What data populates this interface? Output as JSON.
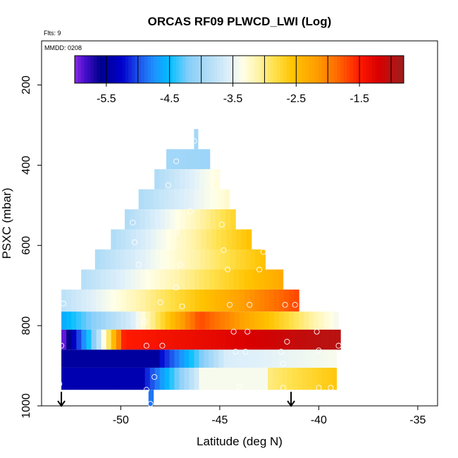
{
  "chart_data": {
    "type": "heatmap",
    "title": "ORCAS RF09 PLWCD_LWI (Log)",
    "flights_note": "Flts: 9",
    "date_note": "MMDD: 0208",
    "xlabel": "Latitude (deg N)",
    "ylabel": "PSXC (mbar)",
    "xlim": [
      -54,
      -34
    ],
    "ylim": [
      1000,
      90
    ],
    "x_ticks": [
      -50,
      -45,
      -40,
      -35
    ],
    "x_tick_labels": [
      "-50",
      "-45",
      "-40",
      "-35"
    ],
    "y_ticks": [
      200,
      400,
      600,
      800,
      1000
    ],
    "y_tick_labels": [
      "200",
      "400",
      "600",
      "800",
      "1000"
    ],
    "colorbar": {
      "range": [
        -6.0,
        -0.8
      ],
      "ticks": [
        -5.5,
        -4.5,
        -3.5,
        -2.5,
        -1.5
      ],
      "tick_labels": [
        "-5.5",
        "-4.5",
        "-3.5",
        "-2.5",
        "-1.5"
      ],
      "stops": [
        {
          "v": -6.0,
          "c": "#8a2be2"
        },
        {
          "v": -5.85,
          "c": "#4b0fd0"
        },
        {
          "v": -5.6,
          "c": "#00008b"
        },
        {
          "v": -5.25,
          "c": "#0000cd"
        },
        {
          "v": -5.0,
          "c": "#1e4fe8"
        },
        {
          "v": -4.75,
          "c": "#1e90ff"
        },
        {
          "v": -4.5,
          "c": "#00bfff"
        },
        {
          "v": -4.2,
          "c": "#87cefa"
        },
        {
          "v": -3.9,
          "c": "#b0dcf7"
        },
        {
          "v": -3.55,
          "c": "#dff0fa"
        },
        {
          "v": -3.35,
          "c": "#ffffe8"
        },
        {
          "v": -3.1,
          "c": "#fff3a8"
        },
        {
          "v": -2.85,
          "c": "#ffe14d"
        },
        {
          "v": -2.55,
          "c": "#ffc300"
        },
        {
          "v": -2.2,
          "c": "#ffa000"
        },
        {
          "v": -1.85,
          "c": "#ff6a00"
        },
        {
          "v": -1.5,
          "c": "#ff1a00"
        },
        {
          "v": -1.2,
          "c": "#d80000"
        },
        {
          "v": -0.95,
          "c": "#b21515"
        },
        {
          "v": -0.8,
          "c": "#9b1c1c"
        }
      ]
    },
    "layers": [
      {
        "p_top": 310,
        "p_bot": 360,
        "lat_start": -46.3,
        "lat_end": -46.1,
        "v_start": -4.0,
        "v_end": -4.0
      },
      {
        "p_top": 360,
        "p_bot": 410,
        "lat_start": -47.7,
        "lat_end": -45.5,
        "v_start": -4.0,
        "v_end": -4.05
      },
      {
        "p_top": 410,
        "p_bot": 460,
        "lat_start": -48.3,
        "lat_end": -45.0,
        "v_start": -3.9,
        "v_end": -3.3
      },
      {
        "p_top": 460,
        "p_bot": 510,
        "lat_start": -49.1,
        "lat_end": -44.5,
        "v_start": -3.9,
        "v_end": -3.25
      },
      {
        "p_top": 510,
        "p_bot": 560,
        "lat_start": -49.8,
        "lat_end": -44.2,
        "v_start": -3.9,
        "v_end": -2.75
      },
      {
        "p_top": 560,
        "p_bot": 610,
        "lat_start": -50.5,
        "lat_end": -43.4,
        "v_start": -3.9,
        "v_end": -2.55
      },
      {
        "p_top": 610,
        "p_bot": 660,
        "lat_start": -51.3,
        "lat_end": -42.7,
        "v_start": -3.9,
        "v_end": -2.55
      },
      {
        "p_top": 660,
        "p_bot": 710,
        "lat_start": -52.0,
        "lat_end": -41.8,
        "v_start": -3.85,
        "v_end": -2.3
      },
      {
        "p_top": 710,
        "p_bot": 765,
        "lat_start": -53.0,
        "lat_end": -41.0,
        "v_start": -3.8,
        "v_end": -1.7
      },
      {
        "p_top": 765,
        "p_bot": 810,
        "lat_start": -53.0,
        "lat_end": -39.0,
        "v_start": -4.6,
        "v_end": -3.4,
        "profile": "warm_mid"
      },
      {
        "p_top": 810,
        "p_bot": 860,
        "lat_start": -53.0,
        "lat_end": -38.9,
        "v_start": -5.9,
        "v_end": -1.0,
        "profile": "hot"
      },
      {
        "p_top": 860,
        "p_bot": 905,
        "lat_start": -53.0,
        "lat_end": -39.1,
        "v_start": -5.5,
        "v_end": -3.4,
        "profile": "cold_band"
      },
      {
        "p_top": 905,
        "p_bot": 960,
        "lat_start": -53.0,
        "lat_end": -39.1,
        "v_start": -5.4,
        "v_end": -2.6,
        "profile": "bottom_band"
      },
      {
        "p_top": 960,
        "p_bot": 1000,
        "lat_start": -48.6,
        "lat_end": -48.35,
        "v_start": -4.85,
        "v_end": -4.85
      }
    ],
    "markers_lat": [
      -53.0,
      -41.4
    ],
    "circles": [
      {
        "lat": -46.3,
        "p": 340
      },
      {
        "lat": -47.2,
        "p": 390
      },
      {
        "lat": -45.2,
        "p": 425
      },
      {
        "lat": -47.6,
        "p": 450
      },
      {
        "lat": -46.5,
        "p": 515
      },
      {
        "lat": -44.9,
        "p": 548
      },
      {
        "lat": -49.4,
        "p": 543
      },
      {
        "lat": -47.2,
        "p": 567
      },
      {
        "lat": -49.3,
        "p": 592
      },
      {
        "lat": -44.8,
        "p": 612
      },
      {
        "lat": -42.8,
        "p": 616
      },
      {
        "lat": -49.1,
        "p": 648
      },
      {
        "lat": -47.0,
        "p": 648
      },
      {
        "lat": -44.6,
        "p": 660
      },
      {
        "lat": -43.0,
        "p": 660
      },
      {
        "lat": -47.2,
        "p": 705
      },
      {
        "lat": -52.9,
        "p": 745
      },
      {
        "lat": -48.0,
        "p": 742
      },
      {
        "lat": -46.9,
        "p": 752
      },
      {
        "lat": -44.5,
        "p": 748
      },
      {
        "lat": -43.5,
        "p": 748
      },
      {
        "lat": -41.7,
        "p": 748
      },
      {
        "lat": -41.2,
        "p": 748
      },
      {
        "lat": -48.8,
        "p": 790
      },
      {
        "lat": -44.3,
        "p": 815
      },
      {
        "lat": -43.6,
        "p": 815
      },
      {
        "lat": -40.1,
        "p": 815
      },
      {
        "lat": -41.6,
        "p": 840
      },
      {
        "lat": -53.0,
        "p": 850
      },
      {
        "lat": -48.7,
        "p": 850
      },
      {
        "lat": -47.9,
        "p": 850
      },
      {
        "lat": -44.2,
        "p": 865
      },
      {
        "lat": -43.7,
        "p": 865
      },
      {
        "lat": -41.9,
        "p": 865
      },
      {
        "lat": -40.0,
        "p": 862
      },
      {
        "lat": -39.0,
        "p": 850
      },
      {
        "lat": -41.8,
        "p": 895
      },
      {
        "lat": -48.3,
        "p": 928
      },
      {
        "lat": -53.1,
        "p": 945
      },
      {
        "lat": -48.7,
        "p": 960
      },
      {
        "lat": -44.0,
        "p": 952
      },
      {
        "lat": -41.8,
        "p": 955
      },
      {
        "lat": -40.0,
        "p": 955
      },
      {
        "lat": -39.4,
        "p": 955
      },
      {
        "lat": -48.5,
        "p": 995
      }
    ]
  }
}
